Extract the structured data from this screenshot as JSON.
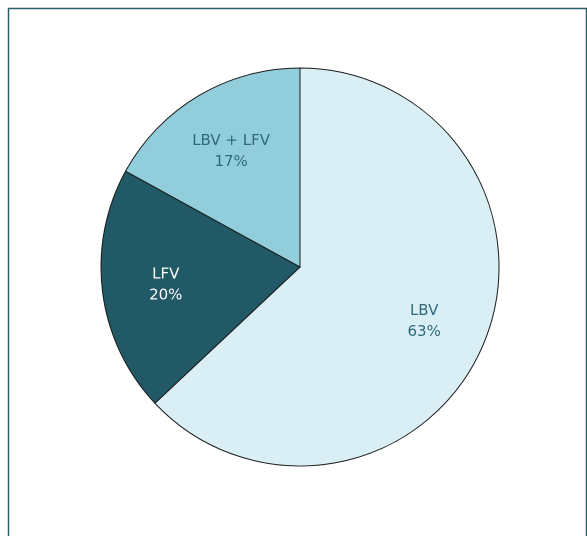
{
  "chart_data": {
    "type": "pie",
    "categories": [
      "LBV",
      "LFV",
      "LBV + LFV"
    ],
    "values": [
      63,
      20,
      17
    ],
    "value_labels": [
      "63%",
      "20%",
      "17%"
    ],
    "colors": [
      "#daeef5",
      "#215966",
      "#92cddc"
    ],
    "label_colors": [
      "#2e6a78",
      "#ffffff",
      "#2e6a78"
    ]
  }
}
